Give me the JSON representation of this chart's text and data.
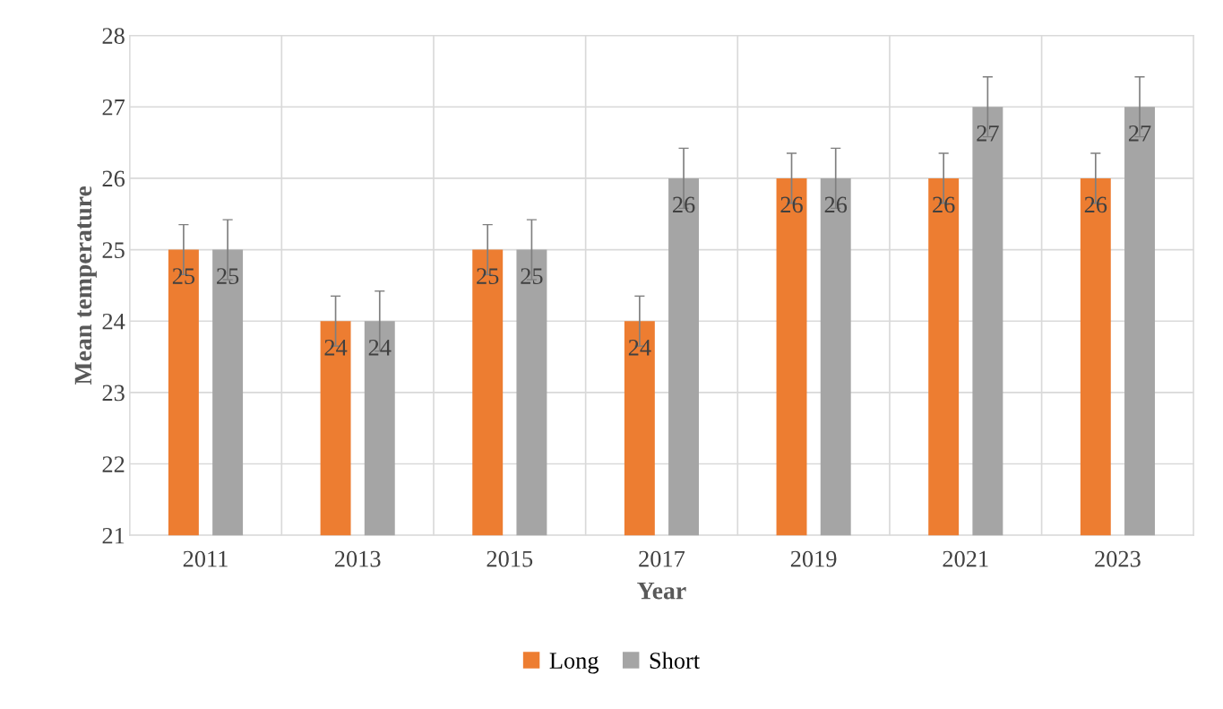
{
  "chart_data": {
    "type": "bar",
    "xlabel": "Year",
    "ylabel": "Mean temperature",
    "categories": [
      "2011",
      "2013",
      "2015",
      "2017",
      "2019",
      "2021",
      "2023"
    ],
    "series": [
      {
        "name": "Long",
        "color": "#ed7d31",
        "values": [
          25,
          24,
          25,
          24,
          26,
          26,
          26
        ],
        "errors": [
          0.35,
          0.35,
          0.35,
          0.35,
          0.35,
          0.35,
          0.35
        ]
      },
      {
        "name": "Short",
        "color": "#a5a5a5",
        "values": [
          25,
          24,
          25,
          26,
          26,
          27,
          27
        ],
        "errors": [
          0.42,
          0.42,
          0.42,
          0.42,
          0.42,
          0.42,
          0.42
        ]
      }
    ],
    "ylim": [
      21,
      28
    ],
    "yticks": [
      21,
      22,
      23,
      24,
      25,
      26,
      27,
      28
    ],
    "grid": true,
    "legend": "bottom",
    "data_labels": true
  }
}
